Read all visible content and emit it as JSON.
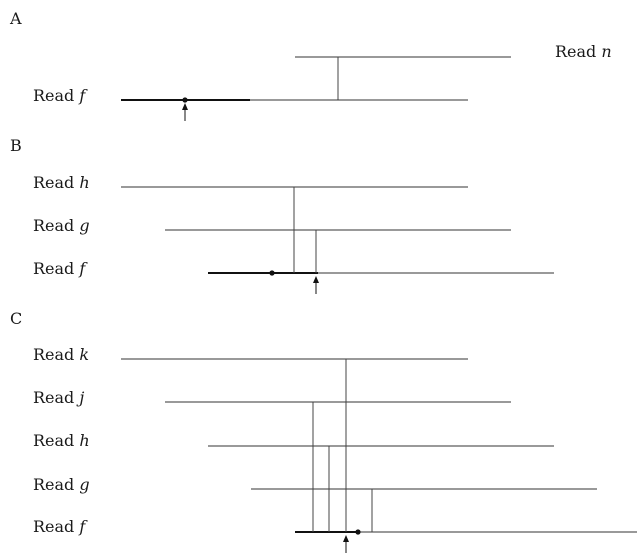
{
  "panels": [
    {
      "label": "A",
      "reads": [
        {
          "word": "Read",
          "var": "n"
        },
        {
          "word": "Read",
          "var": "f"
        }
      ]
    },
    {
      "label": "B",
      "reads": [
        {
          "word": "Read",
          "var": "h"
        },
        {
          "word": "Read",
          "var": "g"
        },
        {
          "word": "Read",
          "var": "f"
        }
      ]
    },
    {
      "label": "C",
      "reads": [
        {
          "word": "Read",
          "var": "k"
        },
        {
          "word": "Read",
          "var": "j"
        },
        {
          "word": "Read",
          "var": "h"
        },
        {
          "word": "Read",
          "var": "g"
        },
        {
          "word": "Read",
          "var": "f"
        }
      ]
    }
  ]
}
